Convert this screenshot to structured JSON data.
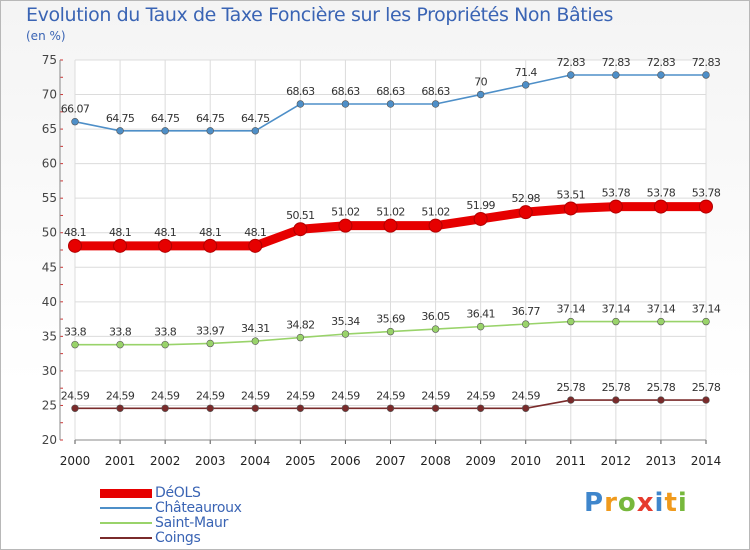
{
  "header": {
    "title": "Evolution du Taux de Taxe Foncière sur les Propriétés Non Bâties",
    "unit": "(en %)"
  },
  "chart_data": {
    "type": "line",
    "title": "Evolution du Taux de Taxe Foncière sur les Propriétés Non Bâties",
    "ylabel": "(en %)",
    "xlabel": "",
    "x": [
      "2000",
      "2001",
      "2002",
      "2003",
      "2004",
      "2005",
      "2006",
      "2007",
      "2008",
      "2009",
      "2010",
      "2011",
      "2012",
      "2013",
      "2014"
    ],
    "ylim": [
      20,
      75
    ],
    "yticks": [
      20,
      25,
      30,
      35,
      40,
      45,
      50,
      55,
      60,
      65,
      70,
      75
    ],
    "grid": true,
    "legend_position": "bottom-left",
    "series": [
      {
        "name": "DéOLS",
        "color": "#e60000",
        "values": [
          48.1,
          48.1,
          48.1,
          48.1,
          48.1,
          50.51,
          51.02,
          51.02,
          51.02,
          51.99,
          52.98,
          53.51,
          53.78,
          53.78,
          53.78
        ],
        "labels": [
          "48.1",
          "48.1",
          "48.1",
          "48.1",
          "48.1",
          "50.51",
          "51.02",
          "51.02",
          "51.02",
          "51.99",
          "52.98",
          "53.51",
          "53.78",
          "53.78",
          "53.78"
        ]
      },
      {
        "name": "Châteauroux",
        "color": "#4e8fc8",
        "values": [
          66.07,
          64.75,
          64.75,
          64.75,
          64.75,
          68.63,
          68.63,
          68.63,
          68.63,
          70,
          71.4,
          72.83,
          72.83,
          72.83,
          72.83
        ],
        "labels": [
          "66.07",
          "64.75",
          "64.75",
          "64.75",
          "64.75",
          "68.63",
          "68.63",
          "68.63",
          "68.63",
          "70",
          "71.4",
          "72.83",
          "72.83",
          "72.83",
          "72.83"
        ]
      },
      {
        "name": "Saint-Maur",
        "color": "#99d36a",
        "values": [
          33.8,
          33.8,
          33.8,
          33.97,
          34.31,
          34.82,
          35.34,
          35.69,
          36.05,
          36.41,
          36.77,
          37.14,
          37.14,
          37.14,
          37.14
        ],
        "labels": [
          "33.8",
          "33.8",
          "33.8",
          "33.97",
          "34.31",
          "34.82",
          "35.34",
          "35.69",
          "36.05",
          "36.41",
          "36.77",
          "37.14",
          "37.14",
          "37.14",
          "37.14"
        ]
      },
      {
        "name": "Coings",
        "color": "#7a2b2b",
        "values": [
          24.59,
          24.59,
          24.59,
          24.59,
          24.59,
          24.59,
          24.59,
          24.59,
          24.59,
          24.59,
          24.59,
          25.78,
          25.78,
          25.78,
          25.78
        ],
        "labels": [
          "24.59",
          "24.59",
          "24.59",
          "24.59",
          "24.59",
          "24.59",
          "24.59",
          "24.59",
          "24.59",
          "24.59",
          "24.59",
          "25.78",
          "25.78",
          "25.78",
          "25.78"
        ]
      }
    ]
  },
  "legend": {
    "items": [
      {
        "label": "DéOLS",
        "color": "#e60000"
      },
      {
        "label": "Châteauroux",
        "color": "#4e8fc8"
      },
      {
        "label": "Saint-Maur",
        "color": "#99d36a"
      },
      {
        "label": "Coings",
        "color": "#7a2b2b"
      }
    ]
  },
  "logo": {
    "text": "Proxiti",
    "letters": [
      "P",
      "r",
      "o",
      "x",
      "i",
      "t",
      "i"
    ],
    "colors": [
      "#3f86cc",
      "#f09a1c",
      "#77b83c",
      "#e63b2e",
      "#3f86cc",
      "#f09a1c",
      "#77b83c"
    ]
  }
}
